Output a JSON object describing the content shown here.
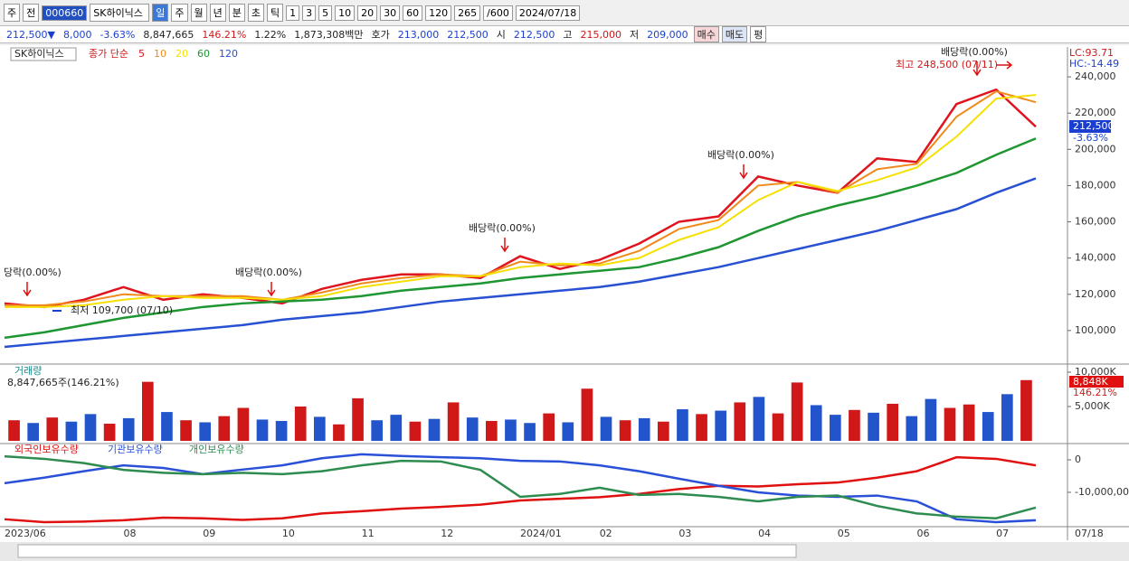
{
  "toolbar": {
    "items": [
      "주",
      "전",
      "000660",
      "SK하이닉스",
      "일",
      "주",
      "월",
      "년",
      "분",
      "초",
      "틱",
      "1",
      "3",
      "5",
      "10",
      "20",
      "30",
      "60",
      "120",
      "265",
      "/600",
      "2024/07/18"
    ]
  },
  "quote": {
    "items": [
      "212,500▼",
      "8,000",
      "-3.63%",
      "8,847,665",
      "146.21%",
      "1.22%",
      "1,873,308백만",
      "호가",
      "213,000",
      "212,500",
      "시",
      "212,500",
      "고",
      "215,000",
      "저",
      "209,000",
      "매수",
      "매도",
      "평"
    ]
  },
  "chart_data": [
    {
      "type": "line",
      "symbol": "SK하이닉스",
      "legend_title": "종가 단순",
      "categories": [
        "2023/06",
        null,
        null,
        "08",
        null,
        "09",
        null,
        "10",
        null,
        "11",
        null,
        "12",
        null,
        "2024/01",
        null,
        "02",
        null,
        "03",
        null,
        "04",
        null,
        "05",
        null,
        "06",
        null,
        "07",
        null
      ],
      "cursor_label": "07/18",
      "ylim": [
        82000,
        256500
      ],
      "yticks": [
        {
          "value": 100000,
          "label": "100,000"
        },
        {
          "value": 120000,
          "label": "120,000"
        },
        {
          "value": 140000,
          "label": "140,000"
        },
        {
          "value": 160000,
          "label": "160,000"
        },
        {
          "value": 180000,
          "label": "180,000"
        },
        {
          "value": 200000,
          "label": "200,000"
        },
        {
          "value": 220000,
          "label": "220,000"
        },
        {
          "value": 240000,
          "label": "240,000"
        }
      ],
      "series": [
        {
          "name": "5",
          "color": "#e0141e",
          "values": [
            115000,
            113000,
            117000,
            124000,
            117000,
            120000,
            118000,
            115000,
            123000,
            128000,
            131000,
            131000,
            129000,
            141000,
            134000,
            139000,
            148000,
            160000,
            163000,
            185000,
            180000,
            176000,
            195000,
            193000,
            225000,
            233000,
            212500
          ]
        },
        {
          "name": "10",
          "color": "#f08a1c",
          "values": [
            114000,
            114000,
            116000,
            120000,
            119000,
            119000,
            119000,
            117000,
            121000,
            126000,
            129000,
            131000,
            130000,
            138000,
            136000,
            137000,
            144000,
            156000,
            161000,
            180000,
            182000,
            176000,
            189000,
            192000,
            218000,
            232000,
            226000
          ]
        },
        {
          "name": "20",
          "color": "#f5e000",
          "values": [
            113000,
            113000,
            114000,
            117000,
            119000,
            118000,
            118000,
            117000,
            119000,
            124000,
            127000,
            130000,
            130000,
            135000,
            137000,
            136000,
            140000,
            150000,
            157000,
            172000,
            182000,
            177000,
            183000,
            190000,
            207000,
            228000,
            230000
          ]
        },
        {
          "name": "60",
          "color": "#1e9632",
          "values": [
            96000,
            99000,
            103000,
            107000,
            110000,
            113000,
            115000,
            116000,
            117000,
            119000,
            122000,
            124000,
            126000,
            129000,
            131000,
            133000,
            135000,
            140000,
            146000,
            155000,
            163000,
            169000,
            174000,
            180000,
            187000,
            197000,
            206000
          ]
        },
        {
          "name": "120",
          "color": "#2850d2",
          "values": [
            91000,
            93000,
            95000,
            97000,
            99000,
            101000,
            103000,
            106000,
            108000,
            110000,
            113000,
            116000,
            118000,
            120000,
            122000,
            124000,
            127000,
            131000,
            135000,
            140000,
            145000,
            150000,
            155000,
            161000,
            167000,
            176000,
            184000
          ]
        }
      ],
      "annotations": [
        "당락(0.00%)",
        "배당락(0.00%)",
        "배당락(0.00%)",
        "배당락(0.00%)",
        "배당락(0.00%)",
        "최고 248,500 (07/11)",
        "최저 109,700 (07/10)"
      ],
      "right_labels": [
        "LC:93.71",
        "HC:-14.49",
        "212,500",
        "-3.63%"
      ]
    },
    {
      "type": "bar",
      "title": "거래량",
      "subtitle": "8,847,665주(146.21%)",
      "ylim": [
        0,
        10000000
      ],
      "yticks": [
        {
          "value": 5000000,
          "label": "5,000K"
        },
        {
          "value": 10000000,
          "label": "10,000K"
        }
      ],
      "right_labels": [
        "8,848K",
        "146.21%"
      ],
      "values": [
        3000000,
        2600000,
        3400000,
        2800000,
        3900000,
        2500000,
        3300000,
        8600000,
        4200000,
        3000000,
        2700000,
        3600000,
        4800000,
        3100000,
        2900000,
        5000000,
        3500000,
        2400000,
        6200000,
        3000000,
        3800000,
        2800000,
        3200000,
        5600000,
        3400000,
        2900000,
        3100000,
        2600000,
        4000000,
        2700000,
        7600000,
        3500000,
        3000000,
        3300000,
        2800000,
        4600000,
        3900000,
        4400000,
        5600000,
        6400000,
        4000000,
        8500000,
        5200000,
        3800000,
        4500000,
        4100000,
        5400000,
        3600000,
        6100000,
        4800000,
        5300000,
        4200000,
        6800000,
        8847665
      ],
      "colors": [
        "#d01818",
        "#2255cc",
        "#d01818",
        "#2255cc",
        "#2255cc",
        "#d01818",
        "#2255cc",
        "#d01818",
        "#2255cc",
        "#d01818",
        "#2255cc",
        "#d01818",
        "#d01818",
        "#2255cc",
        "#2255cc",
        "#d01818",
        "#2255cc",
        "#d01818",
        "#d01818",
        "#2255cc",
        "#2255cc",
        "#d01818",
        "#2255cc",
        "#d01818",
        "#2255cc",
        "#d01818",
        "#2255cc",
        "#2255cc",
        "#d01818",
        "#2255cc",
        "#d01818",
        "#2255cc",
        "#d01818",
        "#2255cc",
        "#d01818",
        "#2255cc",
        "#d01818",
        "#2255cc",
        "#d01818",
        "#2255cc",
        "#d01818",
        "#d01818",
        "#2255cc",
        "#2255cc",
        "#d01818",
        "#2255cc",
        "#d01818",
        "#2255cc",
        "#2255cc",
        "#d01818",
        "#d01818",
        "#2255cc",
        "#2255cc",
        "#d01818"
      ]
    },
    {
      "type": "line",
      "ylim": [
        -20300000,
        3900000
      ],
      "yticks": [
        0,
        {
          "value": -10000000,
          "label": "-10,000,000"
        }
      ],
      "series": [
        {
          "name": "외국인보유수량",
          "color": "#e01010",
          "values": [
            -18300000,
            -19200000,
            -19000000,
            -18600000,
            -17800000,
            -18000000,
            -18500000,
            -18000000,
            -16500000,
            -15800000,
            -15000000,
            -14500000,
            -13800000,
            -12500000,
            -12000000,
            -11500000,
            -10500000,
            -9000000,
            -8000000,
            -8200000,
            -7500000,
            -7000000,
            -5500000,
            -3500000,
            800000,
            300000,
            -1700000
          ]
        },
        {
          "name": "기관보유수량",
          "color": "#2a50d8",
          "values": [
            -7200000,
            -5500000,
            -3500000,
            -1700000,
            -2500000,
            -4400000,
            -3000000,
            -1700000,
            500000,
            1700000,
            1200000,
            800000,
            500000,
            -300000,
            -500000,
            -1700000,
            -3500000,
            -5800000,
            -8000000,
            -10000000,
            -11000000,
            -11400000,
            -11000000,
            -12800000,
            -18300000,
            -19200000,
            -18600000
          ]
        },
        {
          "name": "개인보유수량",
          "color": "#2e8c50",
          "values": [
            1100000,
            300000,
            -1000000,
            -3100000,
            -4000000,
            -4400000,
            -4000000,
            -4400000,
            -3500000,
            -1700000,
            -300000,
            -500000,
            -3100000,
            -11400000,
            -10500000,
            -8600000,
            -10800000,
            -10500000,
            -11400000,
            -12800000,
            -11400000,
            -11000000,
            -14200000,
            -16500000,
            -17500000,
            -18000000,
            -14700000
          ]
        }
      ]
    }
  ]
}
